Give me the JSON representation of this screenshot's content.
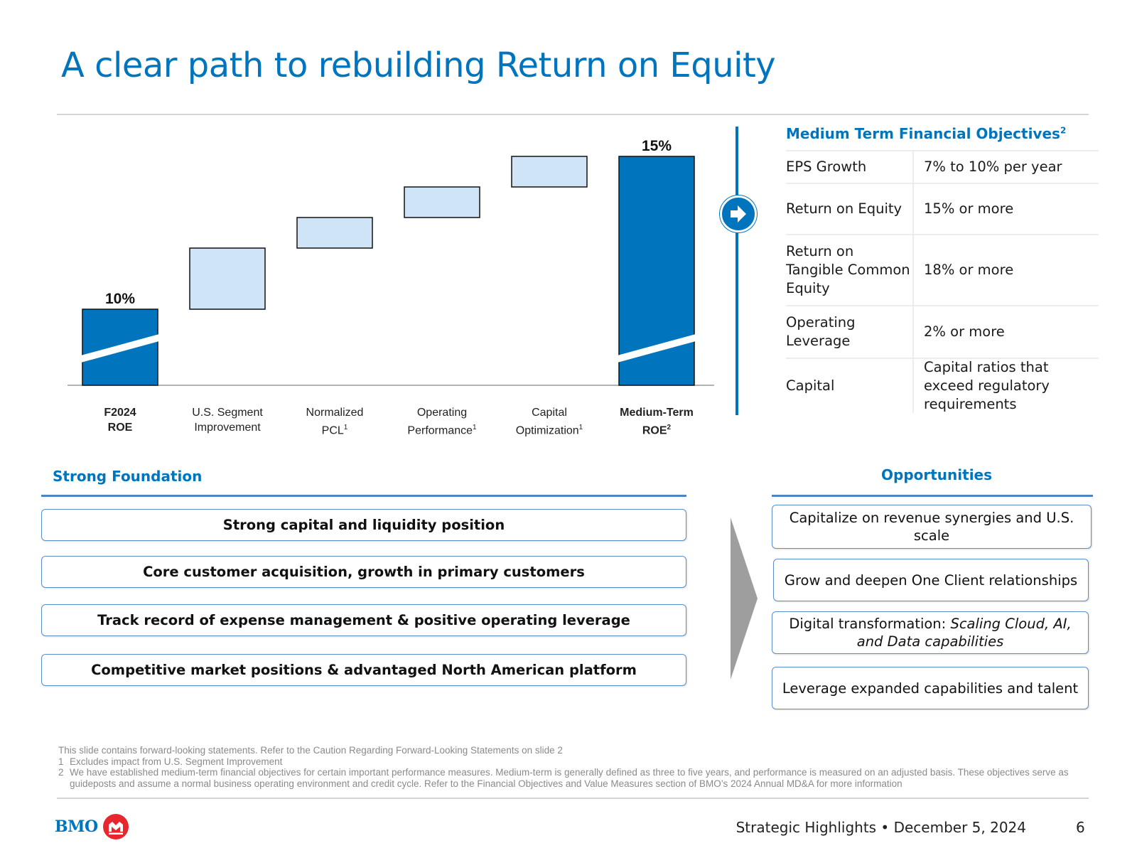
{
  "title": "A clear path to rebuilding Return on Equity",
  "chart_data": {
    "type": "bar",
    "subtype": "waterfall",
    "categories": [
      {
        "line1": "F2024",
        "line2": "ROE",
        "sup": "",
        "bold": true
      },
      {
        "line1": "U.S. Segment",
        "line2": "Improvement",
        "sup": "",
        "bold": false
      },
      {
        "line1": "Normalized",
        "line2": "PCL",
        "sup": "1",
        "bold": false
      },
      {
        "line1": "Operating",
        "line2": "Performance",
        "sup": "1",
        "bold": false
      },
      {
        "line1": "Capital",
        "line2": "Optimization",
        "sup": "1",
        "bold": false
      },
      {
        "line1": "Medium-Term",
        "line2": "ROE",
        "sup": "2",
        "bold": true
      }
    ],
    "bars": [
      {
        "kind": "total",
        "start": 0,
        "end": 10,
        "label": "10%"
      },
      {
        "kind": "step",
        "start": 10,
        "end": 12,
        "label": ""
      },
      {
        "kind": "step",
        "start": 12,
        "end": 13,
        "label": ""
      },
      {
        "kind": "step",
        "start": 13,
        "end": 14,
        "label": ""
      },
      {
        "kind": "step",
        "start": 14,
        "end": 15,
        "label": ""
      },
      {
        "kind": "total",
        "start": 0,
        "end": 15,
        "label": "15%"
      }
    ],
    "axis_break": true,
    "colors": {
      "total": "#0075be",
      "step": "#cfe4f6",
      "outline": "#111111"
    }
  },
  "objectives": {
    "title": "Medium Term Financial Objectives",
    "title_sup": "2",
    "rows": [
      {
        "key": "EPS Growth",
        "value": "7% to 10% per year"
      },
      {
        "key": "Return on Equity",
        "value": "15% or more"
      },
      {
        "key": "Return on Tangible Common Equity",
        "value": "18% or more"
      },
      {
        "key": "Operating Leverage",
        "value": "2% or more"
      },
      {
        "key": "Capital",
        "value": "Capital ratios that exceed regulatory requirements"
      }
    ]
  },
  "foundation": {
    "title": "Strong Foundation",
    "items": [
      "Strong capital and liquidity position",
      "Core customer acquisition, growth in primary customers",
      "Track record of expense management & positive operating leverage",
      "Competitive market positions & advantaged North American platform"
    ]
  },
  "opportunities": {
    "title": "Opportunities",
    "items": [
      {
        "prefix": "Capitalize on revenue synergies and U.S. scale",
        "italic": ""
      },
      {
        "prefix": "Grow and deepen One Client relationships",
        "italic": ""
      },
      {
        "prefix": "Digital transformation: ",
        "italic": "Scaling Cloud, AI, and Data capabilities"
      },
      {
        "prefix": "Leverage expanded capabilities and talent",
        "italic": ""
      }
    ]
  },
  "footnotes": {
    "intro": "This slide contains forward-looking statements. Refer to the Caution Regarding Forward-Looking Statements on slide 2",
    "notes": [
      {
        "num": "1",
        "text": "Excludes impact from U.S. Segment Improvement"
      },
      {
        "num": "2",
        "text": "We have established medium-term financial objectives for certain important performance measures. Medium-term is generally defined as three to five years, and performance is measured on an adjusted basis. These objectives serve as guideposts and assume a normal business operating environment and credit cycle. Refer to the Financial Objectives and Value Measures section of BMO’s 2024 Annual MD&A for more information"
      }
    ]
  },
  "footer": {
    "logo": "BMO",
    "meta": "Strategic Highlights • December 5, 2024",
    "page": "6"
  },
  "icons": {
    "arrow": "arrow-right-icon",
    "chevron": "chevron-right-icon",
    "logo": "bmo-roundel-icon"
  }
}
